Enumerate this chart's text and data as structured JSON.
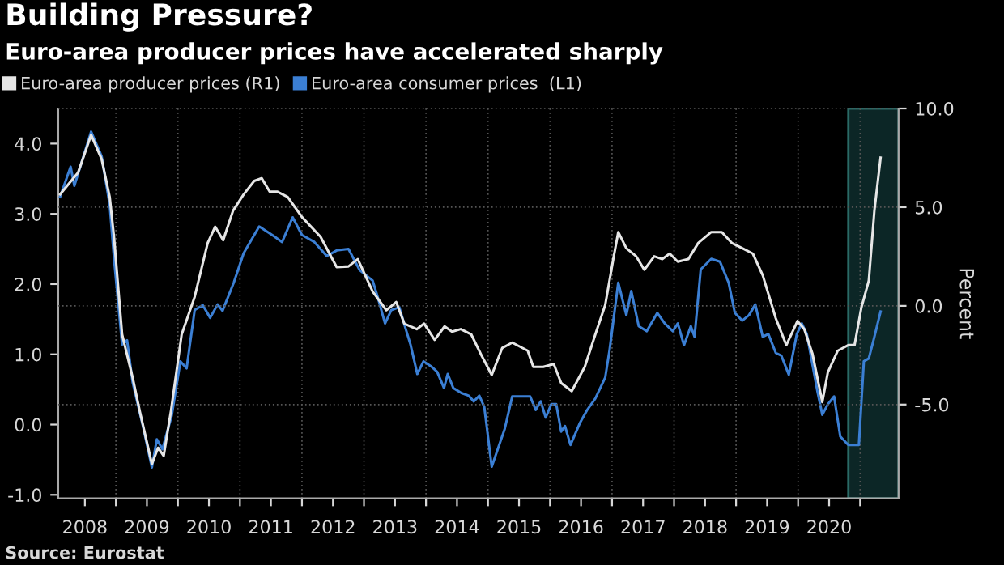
{
  "chart_data": {
    "type": "line",
    "title": "Building Pressure?",
    "subtitle": "Euro-area producer prices have accelerated sharply",
    "ylabel": null,
    "y2label": "Percent",
    "annotations": [
      "Source: Eurostat"
    ],
    "xlim": [
      2008.07,
      2021.62
    ],
    "xticks": [
      {
        "value": 2008.5,
        "label": "2008"
      },
      {
        "value": 2009,
        "label": null
      },
      {
        "value": 2009.5,
        "label": "2009"
      },
      {
        "value": 2010,
        "label": null
      },
      {
        "value": 2010.5,
        "label": "2010"
      },
      {
        "value": 2011,
        "label": null
      },
      {
        "value": 2011.5,
        "label": "2011"
      },
      {
        "value": 2012,
        "label": null
      },
      {
        "value": 2012.5,
        "label": "2012"
      },
      {
        "value": 2013,
        "label": null
      },
      {
        "value": 2013.5,
        "label": "2013"
      },
      {
        "value": 2014,
        "label": null
      },
      {
        "value": 2014.5,
        "label": "2014"
      },
      {
        "value": 2015,
        "label": null
      },
      {
        "value": 2015.5,
        "label": "2015"
      },
      {
        "value": 2016,
        "label": null
      },
      {
        "value": 2016.5,
        "label": "2016"
      },
      {
        "value": 2017,
        "label": null
      },
      {
        "value": 2017.5,
        "label": "2017"
      },
      {
        "value": 2018,
        "label": null
      },
      {
        "value": 2018.5,
        "label": "2018"
      },
      {
        "value": 2019,
        "label": null
      },
      {
        "value": 2019.5,
        "label": "2019"
      },
      {
        "value": 2020,
        "label": null
      },
      {
        "value": 2020.5,
        "label": "2020"
      },
      {
        "value": 2021,
        "label": null
      }
    ],
    "ylim": [
      -1.05,
      4.5
    ],
    "yticks": [
      {
        "value": -1,
        "label": "-1.0"
      },
      {
        "value": 0,
        "label": "0.0"
      },
      {
        "value": 1,
        "label": "1.0"
      },
      {
        "value": 2,
        "label": "2.0"
      },
      {
        "value": 3,
        "label": "3.0"
      },
      {
        "value": 4,
        "label": "4.0"
      }
    ],
    "y2lim": [
      -9.75,
      10
    ],
    "y2ticks": [
      {
        "value": -5,
        "label": "-5.0"
      },
      {
        "value": 0,
        "label": "0.0"
      },
      {
        "value": 5,
        "label": "5.0"
      },
      {
        "value": 10,
        "label": "10.0"
      }
    ],
    "grid": true,
    "legend": "top left",
    "line_style": "solid",
    "bands": [
      {
        "axis": "x",
        "from": 2020.81,
        "to": 2021.62,
        "label": null,
        "color": "#0c2626"
      }
    ],
    "series": [
      {
        "name": "Euro-area producer prices (R1)",
        "color": "#e6e6e6",
        "axis": "y2",
        "x": [
          2008.1,
          2008.39,
          2008.6,
          2008.77,
          2008.9,
          2008.97,
          2009.1,
          2009.27,
          2009.39,
          2009.58,
          2009.68,
          2009.77,
          2009.89,
          2010.06,
          2010.27,
          2010.48,
          2010.6,
          2010.73,
          2010.89,
          2011.06,
          2011.23,
          2011.35,
          2011.48,
          2011.6,
          2011.77,
          2012.0,
          2012.3,
          2012.56,
          2012.75,
          2012.9,
          2013.14,
          2013.36,
          2013.52,
          2013.65,
          2013.85,
          2013.97,
          2014.14,
          2014.3,
          2014.42,
          2014.56,
          2014.73,
          2014.9,
          2015.06,
          2015.23,
          2015.39,
          2015.64,
          2015.73,
          2015.89,
          2016.06,
          2016.18,
          2016.35,
          2016.56,
          2016.73,
          2016.89,
          2017.02,
          2017.1,
          2017.23,
          2017.39,
          2017.52,
          2017.68,
          2017.81,
          2017.93,
          2018.06,
          2018.23,
          2018.39,
          2018.6,
          2018.77,
          2018.93,
          2019.1,
          2019.27,
          2019.43,
          2019.64,
          2019.81,
          2019.99,
          2020.1,
          2020.23,
          2020.39,
          2020.48,
          2020.64,
          2020.81,
          2020.91,
          2021.02,
          2021.14,
          2021.23,
          2021.33
        ],
        "values": [
          5.65,
          6.75,
          8.66,
          7.43,
          5.52,
          3.47,
          -1.45,
          -3.64,
          -5.41,
          -8.01,
          -7.19,
          -7.6,
          -5.28,
          -1.45,
          0.46,
          3.19,
          4.01,
          3.33,
          4.83,
          5.65,
          6.33,
          6.47,
          5.79,
          5.79,
          5.52,
          4.5,
          3.5,
          1.96,
          2.0,
          2.37,
          0.73,
          -0.22,
          0.19,
          -0.9,
          -1.18,
          -0.9,
          -1.72,
          -1.04,
          -1.31,
          -1.18,
          -1.45,
          -2.54,
          -3.5,
          -2.13,
          -1.86,
          -2.27,
          -3.09,
          -3.09,
          -2.95,
          -3.91,
          -4.32,
          -3.09,
          -1.45,
          0.05,
          2.37,
          3.74,
          2.92,
          2.51,
          1.83,
          2.51,
          2.37,
          2.65,
          2.24,
          2.37,
          3.19,
          3.74,
          3.74,
          3.19,
          2.92,
          2.65,
          1.55,
          -0.63,
          -1.99,
          -0.77,
          -1.18,
          -2.41,
          -4.87,
          -3.36,
          -2.27,
          -1.99,
          -1.99,
          -0.09,
          1.28,
          4.83,
          7.51
        ]
      },
      {
        "name": "Euro-area consumer prices  (L1)",
        "color": "#3b7fd4",
        "x": [
          2008.1,
          2008.27,
          2008.33,
          2008.6,
          2008.77,
          2008.9,
          2008.97,
          2009.1,
          2009.18,
          2009.27,
          2009.43,
          2009.58,
          2009.66,
          2009.75,
          2009.9,
          2010.04,
          2010.14,
          2010.27,
          2010.4,
          2010.52,
          2010.64,
          2010.72,
          2010.9,
          2011.06,
          2011.31,
          2011.52,
          2011.68,
          2011.85,
          2012.0,
          2012.2,
          2012.4,
          2012.56,
          2012.75,
          2012.93,
          2013.14,
          2013.22,
          2013.34,
          2013.44,
          2013.57,
          2013.67,
          2013.75,
          2013.86,
          2013.96,
          2014.08,
          2014.18,
          2014.29,
          2014.35,
          2014.44,
          2014.57,
          2014.69,
          2014.77,
          2014.86,
          2014.94,
          2015.06,
          2015.27,
          2015.39,
          2015.68,
          2015.77,
          2015.85,
          2015.93,
          2016.02,
          2016.1,
          2016.18,
          2016.24,
          2016.33,
          2016.48,
          2016.6,
          2016.73,
          2016.89,
          2016.96,
          2017.1,
          2017.23,
          2017.31,
          2017.43,
          2017.56,
          2017.73,
          2017.85,
          2017.98,
          2018.06,
          2018.16,
          2018.27,
          2018.33,
          2018.43,
          2018.6,
          2018.74,
          2018.88,
          2018.98,
          2019.1,
          2019.21,
          2019.31,
          2019.43,
          2019.52,
          2019.64,
          2019.73,
          2019.85,
          2019.98,
          2020.06,
          2020.14,
          2020.31,
          2020.39,
          2020.48,
          2020.58,
          2020.68,
          2020.81,
          2020.98,
          2021.06,
          2021.14,
          2021.23,
          2021.33
        ],
        "values": [
          3.24,
          3.67,
          3.4,
          4.17,
          3.82,
          3.13,
          2.36,
          1.14,
          1.2,
          0.6,
          0.0,
          -0.61,
          -0.21,
          -0.35,
          0.13,
          0.9,
          0.8,
          1.63,
          1.7,
          1.52,
          1.71,
          1.62,
          2.02,
          2.44,
          2.82,
          2.7,
          2.6,
          2.95,
          2.7,
          2.6,
          2.4,
          2.48,
          2.5,
          2.2,
          2.05,
          1.82,
          1.44,
          1.63,
          1.67,
          1.37,
          1.14,
          0.72,
          0.9,
          0.83,
          0.75,
          0.52,
          0.72,
          0.52,
          0.45,
          0.41,
          0.33,
          0.41,
          0.25,
          -0.6,
          -0.06,
          0.4,
          0.4,
          0.21,
          0.33,
          0.1,
          0.29,
          0.29,
          -0.1,
          -0.02,
          -0.29,
          0.02,
          0.21,
          0.37,
          0.67,
          1.06,
          2.02,
          1.56,
          1.9,
          1.4,
          1.33,
          1.59,
          1.44,
          1.33,
          1.44,
          1.13,
          1.4,
          1.25,
          2.21,
          2.36,
          2.32,
          2.02,
          1.59,
          1.48,
          1.56,
          1.71,
          1.25,
          1.29,
          1.02,
          0.98,
          0.71,
          1.29,
          1.44,
          1.29,
          0.48,
          0.14,
          0.29,
          0.4,
          -0.17,
          -0.29,
          -0.29,
          0.9,
          0.94,
          1.25,
          1.61
        ]
      }
    ]
  }
}
